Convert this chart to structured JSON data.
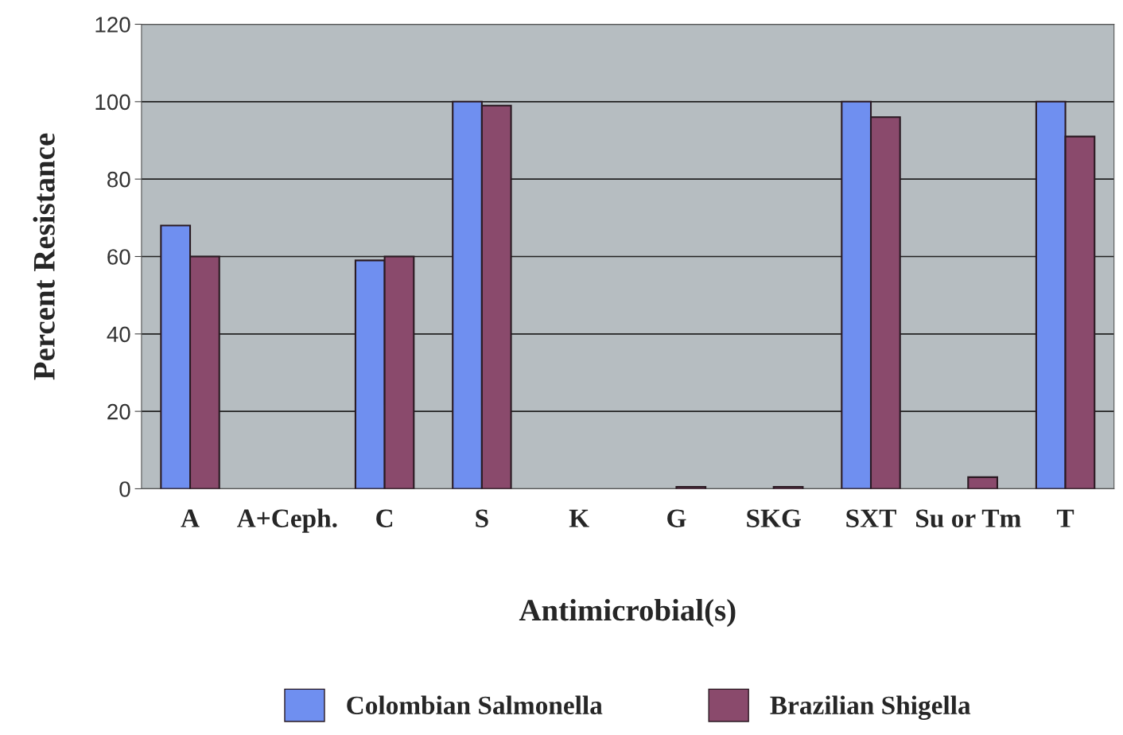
{
  "chart_data": {
    "type": "bar",
    "xlabel": "Antimicrobial(s)",
    "ylabel": "Percent Resistance",
    "categories": [
      "A",
      "A+Ceph.",
      "C",
      "S",
      "K",
      "G",
      "SKG",
      "SXT",
      "Su or Tm",
      "T"
    ],
    "series": [
      {
        "name": "Colombian Salmonella",
        "color": "#6f8ff0",
        "values": [
          68,
          0,
          59,
          100,
          0,
          0,
          0,
          100,
          0,
          100
        ]
      },
      {
        "name": "Brazilian Shigella",
        "color": "#8a4a6c",
        "values": [
          60,
          0,
          60,
          99,
          0,
          0.5,
          0.5,
          96,
          3,
          91
        ]
      }
    ],
    "ylim": [
      0,
      120
    ],
    "yticks": [
      0,
      20,
      40,
      60,
      80,
      100,
      120
    ],
    "grid": "y",
    "legend": "bottom"
  }
}
